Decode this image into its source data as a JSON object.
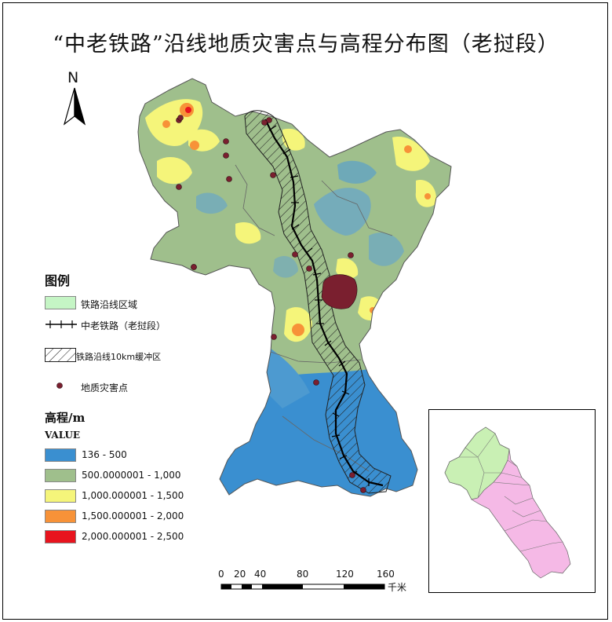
{
  "title": "“中老铁路”沿线地质灾害点与高程分布图（老挝段）",
  "north_arrow": {
    "label": "N"
  },
  "legend": {
    "heading": "图例",
    "items": [
      {
        "key": "region",
        "label": "铁路沿线区域",
        "color": "#c5f5c5"
      },
      {
        "key": "railway",
        "label": "中老铁路（老挝段）"
      },
      {
        "key": "buffer",
        "label": "铁路沿线10km缓冲区"
      },
      {
        "key": "hazard",
        "label": "地质灾害点",
        "color": "#7a1f2f"
      }
    ]
  },
  "elevation": {
    "heading": "高程/m",
    "field": "VALUE",
    "classes": [
      {
        "label": "136 - 500",
        "color": "#3a8fd0"
      },
      {
        "label": "500.0000001 - 1,000",
        "color": "#9fbf8c"
      },
      {
        "label": "1,000.000001 - 1,500",
        "color": "#f5f57a"
      },
      {
        "label": "1,500.000001 - 2,000",
        "color": "#f79238"
      },
      {
        "label": "2,000.000001 - 2,500",
        "color": "#e8141e"
      }
    ]
  },
  "scale_bar": {
    "ticks": [
      "0",
      "20",
      "40",
      "80",
      "120",
      "160"
    ],
    "unit": "千米"
  },
  "inset": {
    "highlight_color": "#c9f0b4",
    "country_color": "#f5b9e6"
  }
}
